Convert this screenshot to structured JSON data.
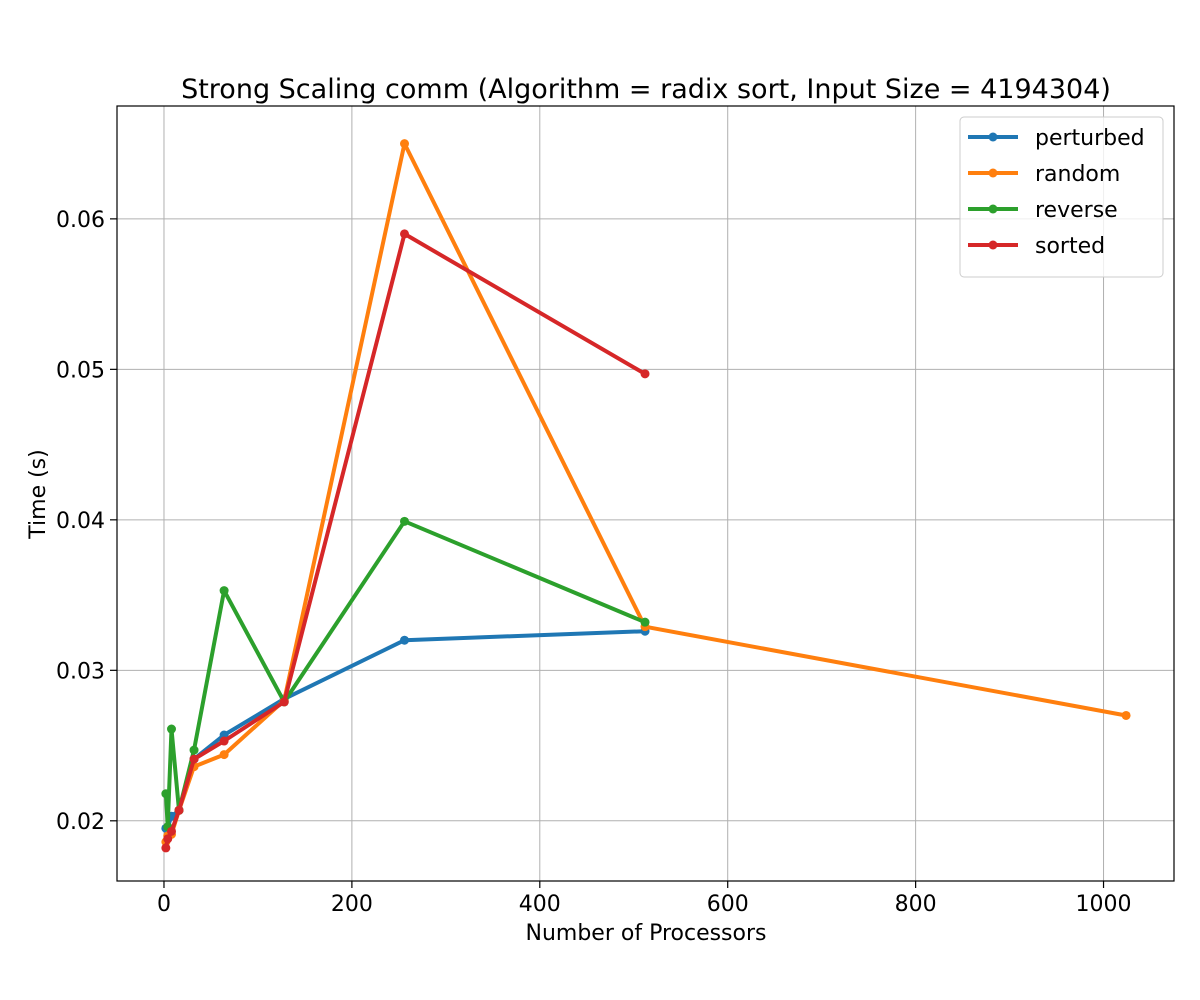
{
  "chart_data": {
    "type": "line",
    "title": "Strong Scaling comm (Algorithm = radix sort, Input Size = 4194304)",
    "xlabel": "Number of Processors",
    "ylabel": "Time (s)",
    "xlim": [
      -50,
      1075
    ],
    "ylim": [
      0.016,
      0.0675
    ],
    "xticks": [
      0,
      200,
      400,
      600,
      800,
      1000
    ],
    "xtick_labels": [
      "0",
      "200",
      "400",
      "600",
      "800",
      "1000"
    ],
    "yticks": [
      0.02,
      0.03,
      0.04,
      0.05,
      0.06
    ],
    "ytick_labels": [
      "0.02",
      "0.03",
      "0.04",
      "0.05",
      "0.06"
    ],
    "grid": true,
    "legend_position": "top-right",
    "series": [
      {
        "name": "perturbed",
        "color": "#1f77b4",
        "x": [
          2,
          4,
          8,
          16,
          32,
          64,
          128,
          256,
          512
        ],
        "y": [
          0.0195,
          0.0196,
          0.0203,
          0.0207,
          0.0241,
          0.0257,
          0.0281,
          0.032,
          0.0326
        ]
      },
      {
        "name": "random",
        "color": "#ff7f0e",
        "x": [
          2,
          4,
          8,
          16,
          32,
          64,
          128,
          256,
          512,
          1024
        ],
        "y": [
          0.0186,
          0.019,
          0.0191,
          0.0207,
          0.0236,
          0.0244,
          0.028,
          0.065,
          0.0329,
          0.027
        ]
      },
      {
        "name": "reverse",
        "color": "#2ca02c",
        "x": [
          2,
          4,
          8,
          16,
          32,
          64,
          128,
          256,
          512
        ],
        "y": [
          0.0218,
          0.0196,
          0.0261,
          0.0207,
          0.0247,
          0.0353,
          0.0279,
          0.0399,
          0.0332
        ]
      },
      {
        "name": "sorted",
        "color": "#d62728",
        "x": [
          2,
          4,
          8,
          16,
          32,
          64,
          128,
          256,
          512
        ],
        "y": [
          0.0182,
          0.0188,
          0.0193,
          0.0207,
          0.0241,
          0.0253,
          0.0279,
          0.059,
          0.0497
        ]
      }
    ]
  }
}
